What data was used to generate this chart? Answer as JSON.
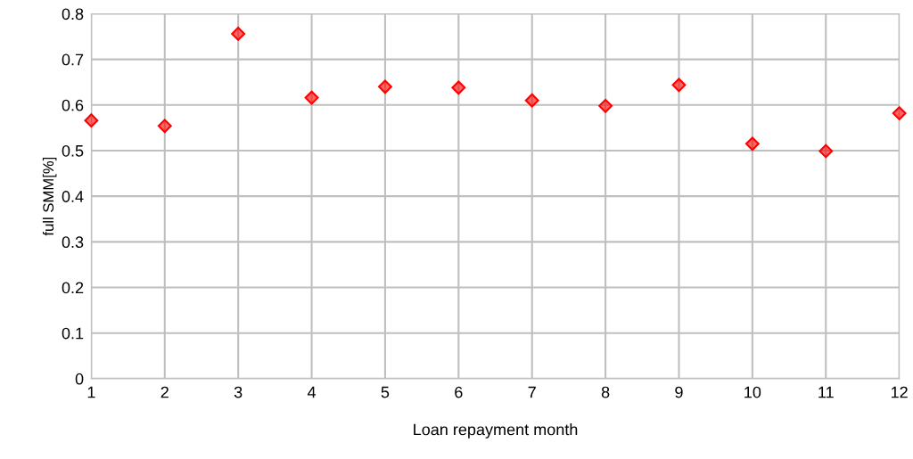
{
  "chart_data": {
    "type": "scatter",
    "xlabel": "Loan repayment month",
    "ylabel": "full SMM[%]",
    "x": [
      1,
      2,
      3,
      4,
      5,
      6,
      7,
      8,
      9,
      10,
      11,
      12
    ],
    "series": [
      {
        "color": "#ff0000",
        "values": [
          0.566,
          0.554,
          0.756,
          0.616,
          0.64,
          0.638,
          0.61,
          0.598,
          0.644,
          0.515,
          0.499,
          0.582
        ]
      }
    ],
    "xlim": [
      1,
      12
    ],
    "xticks": [
      1,
      2,
      3,
      4,
      5,
      6,
      7,
      8,
      9,
      10,
      11,
      12
    ],
    "ylim": [
      0,
      0.8
    ],
    "yticks": [
      0,
      0.1,
      0.2,
      0.3,
      0.4,
      0.5,
      0.6,
      0.7,
      0.8
    ],
    "grid": true,
    "marker": "diamond",
    "legend": false
  }
}
